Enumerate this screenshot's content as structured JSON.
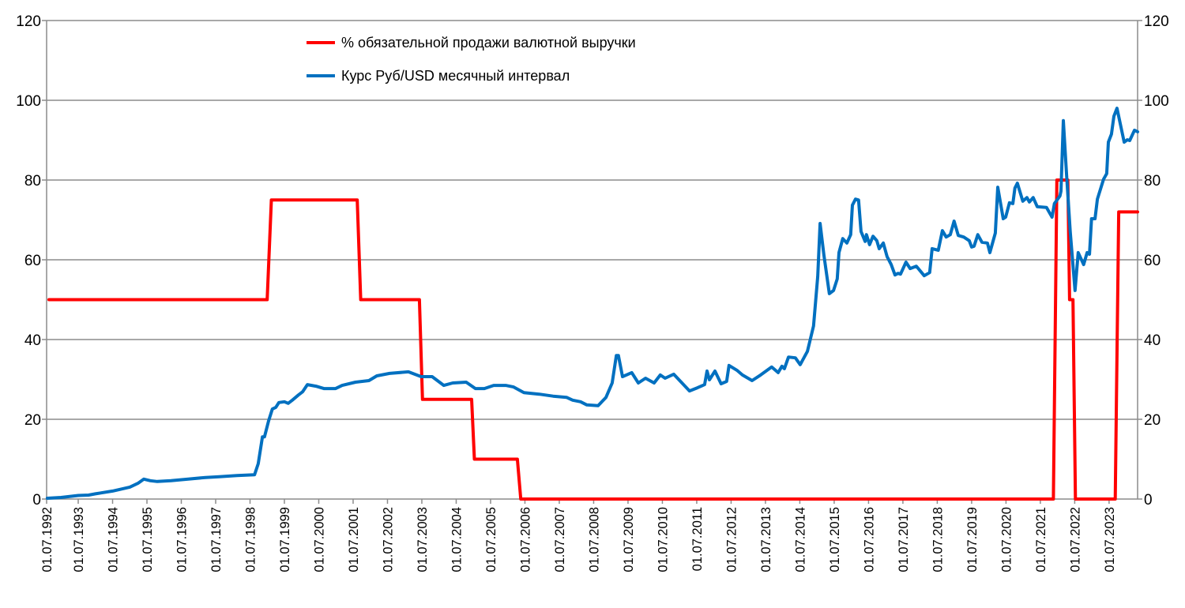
{
  "chart_data": {
    "type": "line",
    "title": "",
    "xlabel": "",
    "ylabel": "",
    "ylabel_right": "",
    "ylim": [
      0,
      120
    ],
    "ylim_right": [
      0,
      120
    ],
    "xlim": [
      1992.58,
      2024.33
    ],
    "grid": true,
    "legend_position": "top-center",
    "y_ticks": [
      "0",
      "20",
      "40",
      "60",
      "80",
      "100",
      "120"
    ],
    "y_tick_values": [
      0,
      20,
      40,
      60,
      80,
      100,
      120
    ],
    "x_ticks": [
      "01.07.1992",
      "01.07.1993",
      "01.07.1994",
      "01.07.1995",
      "01.07.1996",
      "01.07.1997",
      "01.07.1998",
      "01.07.1999",
      "01.07.2000",
      "01.07.2001",
      "01.07.2002",
      "01.07.2003",
      "01.07.2004",
      "01.07.2005",
      "01.07.2006",
      "01.07.2007",
      "01.07.2008",
      "01.07.2009",
      "01.07.2010",
      "01.07.2011",
      "01.07.2012",
      "01.07.2013",
      "01.07.2014",
      "01.07.2015",
      "01.07.2016",
      "01.07.2017",
      "01.07.2018",
      "01.07.2019",
      "01.07.2020",
      "01.07.2021",
      "01.07.2022",
      "01.07.2023"
    ],
    "x_tick_values": [
      1992.5,
      1993.5,
      1994.5,
      1995.5,
      1996.5,
      1997.5,
      1998.5,
      1999.5,
      2000.5,
      2001.5,
      2002.5,
      2003.5,
      2004.5,
      2005.5,
      2006.5,
      2007.5,
      2008.5,
      2009.5,
      2010.5,
      2011.5,
      2012.5,
      2013.5,
      2014.5,
      2015.5,
      2016.5,
      2017.5,
      2018.5,
      2019.5,
      2020.5,
      2021.5,
      2022.5,
      2023.5
    ],
    "series": [
      {
        "name": "% обязательной продажи валютной выручки",
        "color": "#ff0000",
        "points": [
          [
            1992.65,
            50
          ],
          [
            1999.0,
            50
          ],
          [
            1999.12,
            75
          ],
          [
            2001.62,
            75
          ],
          [
            2001.72,
            50
          ],
          [
            2003.43,
            50
          ],
          [
            2003.52,
            25
          ],
          [
            2004.95,
            25
          ],
          [
            2005.03,
            10
          ],
          [
            2006.28,
            10
          ],
          [
            2006.38,
            0
          ],
          [
            2021.88,
            0
          ],
          [
            2021.98,
            80
          ],
          [
            2022.3,
            80
          ],
          [
            2022.35,
            50
          ],
          [
            2022.45,
            50
          ],
          [
            2022.52,
            0
          ],
          [
            2023.68,
            0
          ],
          [
            2023.78,
            72
          ],
          [
            2024.33,
            72
          ]
        ]
      },
      {
        "name": "Курс Руб/USD месячный интервал",
        "color": "#0070c0",
        "points": [
          [
            1992.6,
            0.2
          ],
          [
            1993.0,
            0.4
          ],
          [
            1993.5,
            0.9
          ],
          [
            1993.8,
            1.0
          ],
          [
            1994.0,
            1.3
          ],
          [
            1994.5,
            2.0
          ],
          [
            1995.0,
            3.0
          ],
          [
            1995.25,
            4.0
          ],
          [
            1995.41,
            5.0
          ],
          [
            1995.6,
            4.6
          ],
          [
            1995.8,
            4.4
          ],
          [
            1996.2,
            4.6
          ],
          [
            1996.7,
            5.0
          ],
          [
            1997.2,
            5.4
          ],
          [
            1997.6,
            5.6
          ],
          [
            1998.12,
            5.9
          ],
          [
            1998.63,
            6.1
          ],
          [
            1998.74,
            8.9
          ],
          [
            1998.86,
            15.6
          ],
          [
            1998.92,
            15.6
          ],
          [
            1999.04,
            19.6
          ],
          [
            1999.15,
            22.6
          ],
          [
            1999.25,
            23.0
          ],
          [
            1999.34,
            24.2
          ],
          [
            1999.5,
            24.4
          ],
          [
            1999.61,
            24.0
          ],
          [
            1999.73,
            24.8
          ],
          [
            1999.91,
            26.1
          ],
          [
            2000.03,
            26.9
          ],
          [
            2000.17,
            28.7
          ],
          [
            2000.42,
            28.3
          ],
          [
            2000.65,
            27.7
          ],
          [
            2000.99,
            27.7
          ],
          [
            2001.18,
            28.5
          ],
          [
            2001.57,
            29.3
          ],
          [
            2001.96,
            29.7
          ],
          [
            2002.19,
            30.9
          ],
          [
            2002.56,
            31.5
          ],
          [
            2003.11,
            31.9
          ],
          [
            2003.48,
            30.7
          ],
          [
            2003.8,
            30.7
          ],
          [
            2004.14,
            28.5
          ],
          [
            2004.4,
            29.1
          ],
          [
            2004.79,
            29.3
          ],
          [
            2005.06,
            27.7
          ],
          [
            2005.32,
            27.7
          ],
          [
            2005.59,
            28.5
          ],
          [
            2005.94,
            28.5
          ],
          [
            2006.17,
            28.1
          ],
          [
            2006.47,
            26.7
          ],
          [
            2006.92,
            26.3
          ],
          [
            2007.32,
            25.8
          ],
          [
            2007.71,
            25.5
          ],
          [
            2007.89,
            24.8
          ],
          [
            2008.12,
            24.4
          ],
          [
            2008.3,
            23.6
          ],
          [
            2008.63,
            23.4
          ],
          [
            2008.86,
            25.5
          ],
          [
            2009.04,
            29.1
          ],
          [
            2009.16,
            36.0
          ],
          [
            2009.22,
            36.0
          ],
          [
            2009.34,
            30.7
          ],
          [
            2009.61,
            31.7
          ],
          [
            2009.8,
            29.1
          ],
          [
            2010.01,
            30.3
          ],
          [
            2010.26,
            29.1
          ],
          [
            2010.44,
            31.1
          ],
          [
            2010.58,
            30.3
          ],
          [
            2010.83,
            31.3
          ],
          [
            2011.29,
            27.1
          ],
          [
            2011.52,
            27.9
          ],
          [
            2011.73,
            28.7
          ],
          [
            2011.8,
            32.1
          ],
          [
            2011.87,
            29.9
          ],
          [
            2012.03,
            32.1
          ],
          [
            2012.21,
            28.9
          ],
          [
            2012.37,
            29.5
          ],
          [
            2012.44,
            33.5
          ],
          [
            2012.67,
            32.3
          ],
          [
            2012.83,
            31.1
          ],
          [
            2013.11,
            29.7
          ],
          [
            2013.36,
            31.1
          ],
          [
            2013.68,
            33.1
          ],
          [
            2013.87,
            31.7
          ],
          [
            2013.98,
            33.3
          ],
          [
            2014.05,
            32.7
          ],
          [
            2014.17,
            35.6
          ],
          [
            2014.37,
            35.4
          ],
          [
            2014.51,
            33.7
          ],
          [
            2014.72,
            37.0
          ],
          [
            2014.9,
            43.4
          ],
          [
            2015.02,
            55.8
          ],
          [
            2015.09,
            69.1
          ],
          [
            2015.2,
            61.2
          ],
          [
            2015.36,
            51.5
          ],
          [
            2015.48,
            52.3
          ],
          [
            2015.59,
            55.2
          ],
          [
            2015.64,
            61.8
          ],
          [
            2015.75,
            65.3
          ],
          [
            2015.87,
            64.2
          ],
          [
            2015.98,
            66.3
          ],
          [
            2016.03,
            73.7
          ],
          [
            2016.12,
            75.2
          ],
          [
            2016.21,
            75.0
          ],
          [
            2016.28,
            67.1
          ],
          [
            2016.4,
            64.6
          ],
          [
            2016.44,
            66.3
          ],
          [
            2016.53,
            63.8
          ],
          [
            2016.63,
            65.9
          ],
          [
            2016.74,
            64.8
          ],
          [
            2016.81,
            62.8
          ],
          [
            2016.93,
            64.2
          ],
          [
            2017.04,
            60.8
          ],
          [
            2017.16,
            58.8
          ],
          [
            2017.27,
            56.2
          ],
          [
            2017.36,
            56.6
          ],
          [
            2017.43,
            56.4
          ],
          [
            2017.59,
            59.4
          ],
          [
            2017.71,
            57.8
          ],
          [
            2017.89,
            58.4
          ],
          [
            2018.12,
            56.0
          ],
          [
            2018.28,
            56.8
          ],
          [
            2018.35,
            62.8
          ],
          [
            2018.53,
            62.4
          ],
          [
            2018.65,
            67.3
          ],
          [
            2018.76,
            65.7
          ],
          [
            2018.88,
            66.3
          ],
          [
            2018.99,
            69.7
          ],
          [
            2019.11,
            66.1
          ],
          [
            2019.27,
            65.7
          ],
          [
            2019.43,
            64.8
          ],
          [
            2019.5,
            63.2
          ],
          [
            2019.57,
            63.4
          ],
          [
            2019.68,
            66.3
          ],
          [
            2019.8,
            64.4
          ],
          [
            2019.96,
            64.2
          ],
          [
            2020.03,
            61.8
          ],
          [
            2020.19,
            66.7
          ],
          [
            2020.26,
            78.2
          ],
          [
            2020.42,
            70.3
          ],
          [
            2020.49,
            70.7
          ],
          [
            2020.6,
            74.3
          ],
          [
            2020.7,
            74.1
          ],
          [
            2020.76,
            78.0
          ],
          [
            2020.83,
            79.2
          ],
          [
            2020.99,
            74.7
          ],
          [
            2021.11,
            75.6
          ],
          [
            2021.18,
            74.5
          ],
          [
            2021.29,
            75.6
          ],
          [
            2021.41,
            73.3
          ],
          [
            2021.68,
            73.1
          ],
          [
            2021.84,
            70.7
          ],
          [
            2021.91,
            74.1
          ],
          [
            2021.96,
            74.7
          ],
          [
            2022.07,
            76.0
          ],
          [
            2022.1,
            77.2
          ],
          [
            2022.17,
            94.9
          ],
          [
            2022.26,
            81.6
          ],
          [
            2022.37,
            67.1
          ],
          [
            2022.51,
            52.3
          ],
          [
            2022.6,
            61.8
          ],
          [
            2022.76,
            58.8
          ],
          [
            2022.86,
            61.8
          ],
          [
            2022.93,
            61.4
          ],
          [
            2022.99,
            70.3
          ],
          [
            2023.09,
            70.3
          ],
          [
            2023.16,
            75.2
          ],
          [
            2023.34,
            80.2
          ],
          [
            2023.43,
            81.6
          ],
          [
            2023.48,
            89.5
          ],
          [
            2023.57,
            91.5
          ],
          [
            2023.64,
            96.0
          ],
          [
            2023.73,
            98.0
          ],
          [
            2023.94,
            89.5
          ],
          [
            2024.03,
            90.1
          ],
          [
            2024.1,
            89.9
          ],
          [
            2024.24,
            92.5
          ],
          [
            2024.33,
            92.1
          ]
        ]
      }
    ]
  }
}
